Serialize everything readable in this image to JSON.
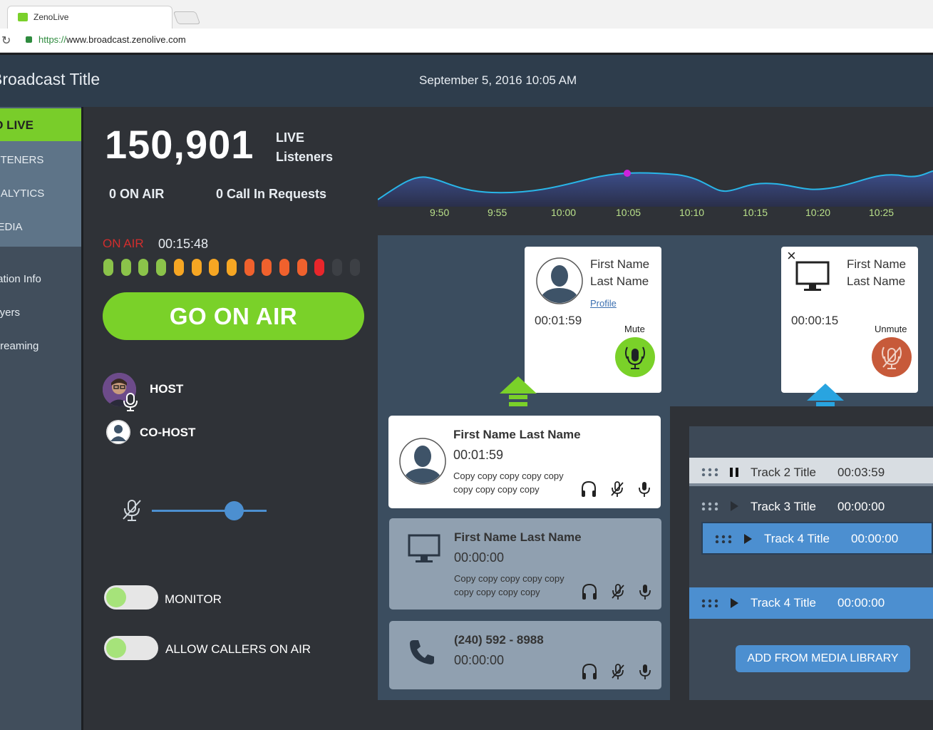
{
  "browser": {
    "tab_title": "ZenoLive",
    "url_protocol": "https://",
    "url_rest": "www.broadcast.zenolive.com"
  },
  "header": {
    "title": "Broadcast Title",
    "datetime": "September 5, 2016 10:05 AM"
  },
  "sidebar": {
    "items": [
      "GO LIVE",
      "LISTENERS",
      "ANALYTICS",
      "MEDIA",
      "Station Info",
      "Players",
      "Streaming"
    ]
  },
  "stats": {
    "live_count": "150,901",
    "live_label_1": "LIVE",
    "live_label_2": "Listeners",
    "on_air": "0 ON AIR",
    "call_in": "0 Call In Requests"
  },
  "onair": {
    "label": "ON AIR",
    "timer": "00:15:48",
    "go_button": "GO ON AIR",
    "meter_colors": [
      "#8bc34a",
      "#8bc34a",
      "#8bc34a",
      "#8bc34a",
      "#f6a623",
      "#f6a623",
      "#f6a623",
      "#f6a623",
      "#f0612d",
      "#f0612d",
      "#f0612d",
      "#f0612d",
      "#e8262b",
      "#3d4045",
      "#3d4045"
    ]
  },
  "hosts": {
    "host": "HOST",
    "cohost": "CO-HOST"
  },
  "volume": {
    "level": 0.72
  },
  "toggles": {
    "monitor": "MONITOR",
    "allow_callers": "ALLOW CALLERS ON AIR"
  },
  "chart_data": {
    "type": "area",
    "x": [
      "9:50",
      "9:55",
      "10:00",
      "10:05",
      "10:10",
      "10:15",
      "10:20",
      "10:25"
    ],
    "title": "",
    "xlabel": "",
    "ylabel": "",
    "highlight": "10:05"
  },
  "stage": {
    "guest1": {
      "first": "First Name",
      "last": "Last Name",
      "profile": "Profile",
      "timer": "00:01:59",
      "action": "Mute"
    },
    "guest2": {
      "first": "First Name",
      "last": "Last Name",
      "timer": "00:00:15",
      "action": "Unmute"
    }
  },
  "callers": [
    {
      "name": "First Name Last Name",
      "timer": "00:01:59",
      "copy1": "Copy copy copy copy copy",
      "copy2": "copy copy copy copy"
    },
    {
      "name": "First Name Last Name",
      "timer": "00:00:00",
      "copy1": "Copy copy copy copy copy",
      "copy2": "copy copy copy copy"
    },
    {
      "name": "(240) 592 - 8988",
      "timer": "00:00:00"
    }
  ],
  "playlist": {
    "tracks": [
      {
        "title": "Track 2 Title",
        "duration": "00:03:59"
      },
      {
        "title": "Track 3 Title",
        "duration": "00:00:00"
      },
      {
        "title": "Track 4 Title",
        "duration": "00:00:00"
      },
      {
        "title": "Track 4 Title",
        "duration": "00:00:00"
      }
    ],
    "add_button": "ADD FROM MEDIA LIBRARY"
  }
}
